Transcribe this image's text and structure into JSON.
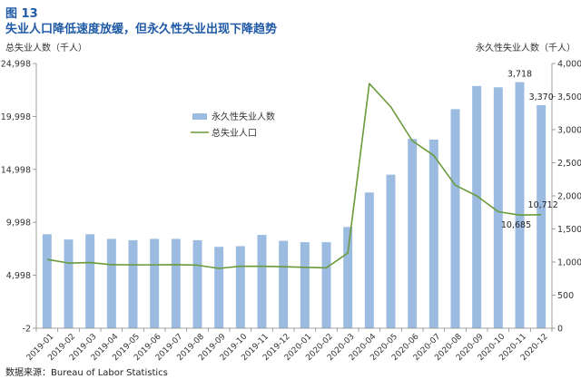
{
  "figure": {
    "label": "图 13",
    "title": "失业人口降低速度放缓，但永久性失业出现下降趋势",
    "source": "数据来源：Bureau of Labor Statistics"
  },
  "chart_data": {
    "type": "bar",
    "categories": [
      "2019-01",
      "2019-02",
      "2019-03",
      "2019-04",
      "2019-05",
      "2019-06",
      "2019-07",
      "2019-08",
      "2019-09",
      "2019-10",
      "2019-11",
      "2019-12",
      "2020-01",
      "2020-02",
      "2020-03",
      "2020-04",
      "2020-05",
      "2020-06",
      "2020-07",
      "2020-08",
      "2020-09",
      "2020-10",
      "2020-11",
      "2020-12"
    ],
    "left_axis": {
      "label": "总失业人数（千人）",
      "ticks": [
        -2,
        4998,
        9998,
        14998,
        19998,
        24998
      ],
      "tick_labels": [
        "-2",
        "4,998",
        "9,998",
        "14,998",
        "19,998",
        "24,998"
      ],
      "ylim": [
        -2,
        24998
      ]
    },
    "right_axis": {
      "label": "永久性失业人数（千人）",
      "ticks": [
        0,
        500,
        1000,
        1500,
        2000,
        2500,
        3000,
        3500,
        4000
      ],
      "tick_labels": [
        "0",
        "500",
        "1,000",
        "1,500",
        "2,000",
        "2,500",
        "3,000",
        "3,500",
        "4,000"
      ],
      "ylim": [
        0,
        4000
      ]
    },
    "series": [
      {
        "name": "永久性失业人数",
        "type": "bar",
        "axis": "right",
        "color": "#9bbbe0",
        "values": [
          1420,
          1340,
          1420,
          1350,
          1330,
          1350,
          1350,
          1330,
          1230,
          1240,
          1410,
          1320,
          1300,
          1300,
          1530,
          2050,
          2320,
          2860,
          2850,
          3310,
          3660,
          3640,
          3718,
          3370
        ]
      },
      {
        "name": "总失业人口",
        "type": "line",
        "axis": "left",
        "color": "#6a9a3a",
        "values": [
          6500,
          6150,
          6200,
          6000,
          5980,
          5980,
          6000,
          5950,
          5650,
          5850,
          5850,
          5800,
          5750,
          5700,
          7100,
          23100,
          20900,
          17700,
          16300,
          13500,
          12500,
          11000,
          10685,
          10712
        ]
      }
    ],
    "data_labels": [
      {
        "series": "永久性失业人数",
        "category": "2020-11",
        "text": "3,718"
      },
      {
        "series": "永久性失业人数",
        "category": "2020-12",
        "text": "3,370"
      },
      {
        "series": "总失业人口",
        "category": "2020-11",
        "text": "10,685"
      },
      {
        "series": "总失业人口",
        "category": "2020-12",
        "text": "10,712"
      }
    ],
    "legend": {
      "placement": "top-center",
      "entries": [
        "永久性失业人数",
        "总失业人口"
      ]
    },
    "grid": false
  }
}
